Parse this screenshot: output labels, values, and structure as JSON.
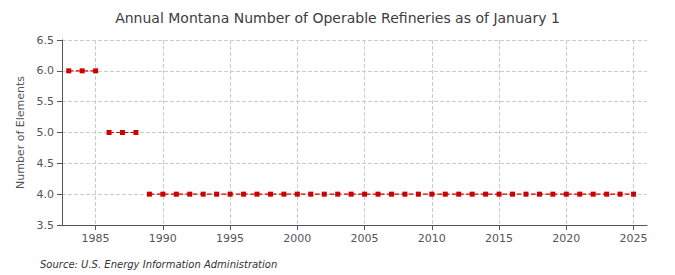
{
  "chart_data": {
    "type": "line",
    "title": "Annual Montana Number of Operable Refineries as of January 1",
    "ylabel": "Number of Elements",
    "source": "Source: U.S. Energy Information Administration",
    "x": [
      1983,
      1984,
      1985,
      1986,
      1987,
      1988,
      1989,
      1990,
      1991,
      1992,
      1993,
      1994,
      1995,
      1996,
      1997,
      1998,
      1999,
      2000,
      2001,
      2002,
      2003,
      2004,
      2005,
      2006,
      2007,
      2008,
      2009,
      2010,
      2011,
      2012,
      2013,
      2014,
      2015,
      2016,
      2017,
      2018,
      2019,
      2020,
      2021,
      2022,
      2023,
      2024,
      2025
    ],
    "values": [
      6,
      6,
      6,
      5,
      5,
      5,
      4,
      4,
      4,
      4,
      4,
      4,
      4,
      4,
      4,
      4,
      4,
      4,
      4,
      4,
      4,
      4,
      4,
      4,
      4,
      4,
      4,
      4,
      4,
      4,
      4,
      4,
      4,
      4,
      4,
      4,
      4,
      4,
      4,
      4,
      4,
      4,
      4
    ],
    "color": "#cc0000",
    "marker": "square",
    "line_style": "dashed",
    "xlim": [
      1982.5,
      2026
    ],
    "ylim": [
      3.5,
      6.5
    ],
    "xticks": [
      1985,
      1990,
      1995,
      2000,
      2005,
      2010,
      2015,
      2020,
      2025
    ],
    "yticks": [
      3.5,
      {
        "value": 4,
        "label": "4.0"
      },
      4.5,
      {
        "value": 5,
        "label": "5.0"
      },
      5.5,
      {
        "value": 6,
        "label": "6.0"
      },
      6.5
    ],
    "grid": true
  }
}
